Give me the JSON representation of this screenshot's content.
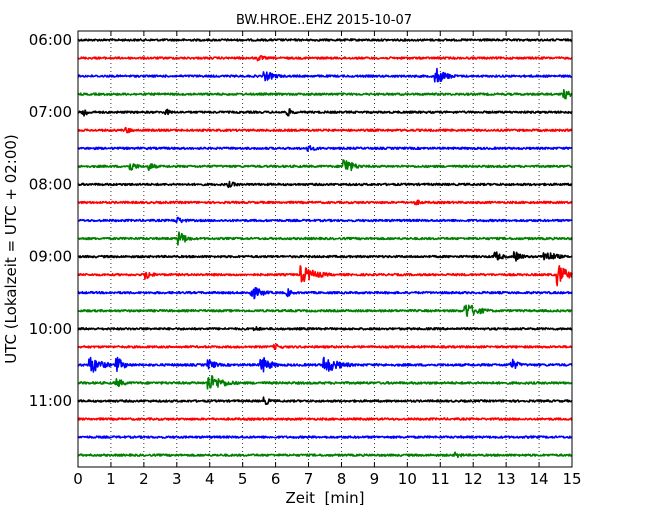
{
  "chart_data": {
    "type": "line",
    "title": "BW.HROE..EHZ 2015-10-07",
    "xlabel": "Zeit  [min]",
    "ylabel": "UTC (Lokalzeit = UTC + 02:00)",
    "xlim": [
      0,
      15
    ],
    "x_ticks": [
      0,
      1,
      2,
      3,
      4,
      5,
      6,
      7,
      8,
      9,
      10,
      11,
      12,
      13,
      14,
      15
    ],
    "x_tick_labels": [
      "0",
      "1",
      "2",
      "3",
      "4",
      "5",
      "6",
      "7",
      "8",
      "9",
      "10",
      "11",
      "12",
      "13",
      "14",
      "15"
    ],
    "y_tick_labels": [
      "06:00",
      "07:00",
      "08:00",
      "09:00",
      "10:00",
      "11:00"
    ],
    "grid": "vertical dotted",
    "legend": "none",
    "trace_interval_minutes": 15,
    "colors_cycle": [
      "#000000",
      "#ff0000",
      "#0000ff",
      "#008000"
    ],
    "series": [
      {
        "start": "06:00",
        "color": "#000000",
        "amp": 2.0,
        "events": []
      },
      {
        "start": "06:15",
        "color": "#ff0000",
        "amp": 2.0,
        "events": [
          {
            "t": 5.5,
            "a": 3,
            "d": 0.6
          }
        ]
      },
      {
        "start": "06:30",
        "color": "#0000ff",
        "amp": 2.0,
        "events": [
          {
            "t": 5.7,
            "a": 5,
            "d": 0.8
          },
          {
            "t": 10.9,
            "a": 8,
            "d": 0.7
          }
        ]
      },
      {
        "start": "06:45",
        "color": "#008000",
        "amp": 2.0,
        "events": [
          {
            "t": 14.8,
            "a": 5,
            "d": 0.4
          }
        ]
      },
      {
        "start": "07:00",
        "color": "#000000",
        "amp": 2.0,
        "events": [
          {
            "t": 0.2,
            "a": 5,
            "d": 0.3
          },
          {
            "t": 2.7,
            "a": 3,
            "d": 0.4
          },
          {
            "t": 6.4,
            "a": 4,
            "d": 0.4
          }
        ]
      },
      {
        "start": "07:15",
        "color": "#ff0000",
        "amp": 2.0,
        "events": [
          {
            "t": 1.5,
            "a": 3,
            "d": 0.5
          }
        ]
      },
      {
        "start": "07:30",
        "color": "#0000ff",
        "amp": 2.0,
        "events": [
          {
            "t": 7.0,
            "a": 3,
            "d": 0.8
          }
        ]
      },
      {
        "start": "07:45",
        "color": "#008000",
        "amp": 2.0,
        "events": [
          {
            "t": 1.6,
            "a": 5,
            "d": 0.5
          },
          {
            "t": 2.2,
            "a": 4,
            "d": 0.4
          },
          {
            "t": 8.1,
            "a": 9,
            "d": 0.6
          }
        ]
      },
      {
        "start": "08:00",
        "color": "#000000",
        "amp": 2.0,
        "events": [
          {
            "t": 4.6,
            "a": 3,
            "d": 0.7
          }
        ]
      },
      {
        "start": "08:15",
        "color": "#ff0000",
        "amp": 2.0,
        "events": [
          {
            "t": 10.3,
            "a": 2.5,
            "d": 0.6
          }
        ]
      },
      {
        "start": "08:30",
        "color": "#0000ff",
        "amp": 2.0,
        "events": [
          {
            "t": 3.0,
            "a": 4,
            "d": 0.6
          }
        ]
      },
      {
        "start": "08:45",
        "color": "#008000",
        "amp": 2.0,
        "events": [
          {
            "t": 3.1,
            "a": 7,
            "d": 0.5
          }
        ]
      },
      {
        "start": "09:00",
        "color": "#000000",
        "amp": 2.0,
        "events": [
          {
            "t": 12.7,
            "a": 5,
            "d": 0.5
          },
          {
            "t": 13.3,
            "a": 5,
            "d": 0.5
          },
          {
            "t": 14.2,
            "a": 6,
            "d": 0.8
          }
        ]
      },
      {
        "start": "09:15",
        "color": "#ff0000",
        "amp": 2.0,
        "events": [
          {
            "t": 2.1,
            "a": 5,
            "d": 0.4
          },
          {
            "t": 6.8,
            "a": 9,
            "d": 1.0
          },
          {
            "t": 14.6,
            "a": 11,
            "d": 0.6
          }
        ]
      },
      {
        "start": "09:30",
        "color": "#0000ff",
        "amp": 2.0,
        "events": [
          {
            "t": 5.3,
            "a": 7,
            "d": 0.7
          },
          {
            "t": 6.4,
            "a": 4,
            "d": 0.3
          }
        ]
      },
      {
        "start": "09:45",
        "color": "#008000",
        "amp": 2.0,
        "events": [
          {
            "t": 11.8,
            "a": 8,
            "d": 0.9
          }
        ]
      },
      {
        "start": "10:00",
        "color": "#000000",
        "amp": 2.0,
        "events": [
          {
            "t": 5.4,
            "a": 2.5,
            "d": 0.5
          }
        ]
      },
      {
        "start": "10:15",
        "color": "#ff0000",
        "amp": 2.0,
        "events": [
          {
            "t": 6.0,
            "a": 3,
            "d": 0.6
          }
        ]
      },
      {
        "start": "10:30",
        "color": "#0000ff",
        "amp": 2.2,
        "events": [
          {
            "t": 0.4,
            "a": 8,
            "d": 0.8
          },
          {
            "t": 1.2,
            "a": 7,
            "d": 0.5
          },
          {
            "t": 4.0,
            "a": 5,
            "d": 0.5
          },
          {
            "t": 5.6,
            "a": 8,
            "d": 0.6
          },
          {
            "t": 7.5,
            "a": 8,
            "d": 1.0
          },
          {
            "t": 13.2,
            "a": 5,
            "d": 0.5
          }
        ]
      },
      {
        "start": "10:45",
        "color": "#008000",
        "amp": 2.2,
        "events": [
          {
            "t": 1.2,
            "a": 4,
            "d": 0.6
          },
          {
            "t": 4.0,
            "a": 8,
            "d": 1.0
          }
        ]
      },
      {
        "start": "11:00",
        "color": "#000000",
        "amp": 2.0,
        "events": [
          {
            "t": 5.7,
            "a": 4,
            "d": 0.4
          }
        ]
      },
      {
        "start": "11:15",
        "color": "#ff0000",
        "amp": 2.0,
        "events": []
      },
      {
        "start": "11:30",
        "color": "#0000ff",
        "amp": 2.0,
        "events": []
      },
      {
        "start": "11:45",
        "color": "#008000",
        "amp": 2.0,
        "events": [
          {
            "t": 11.5,
            "a": 3,
            "d": 0.5
          }
        ]
      }
    ]
  }
}
